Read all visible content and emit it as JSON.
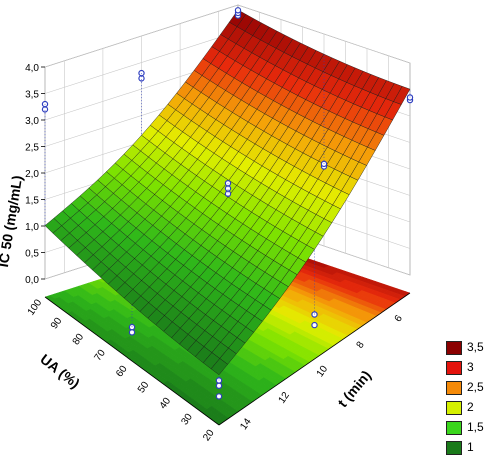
{
  "chart_data": {
    "type": "surface3d",
    "zlabel": "IC 50 (mg/mL)",
    "xlabel": "t (min)",
    "ylabel": "UA (%)",
    "z_ticks": [
      "0,0",
      "0,5",
      "1,0",
      "1,5",
      "2,0",
      "2,5",
      "3,0",
      "3,5",
      "4,0"
    ],
    "x_ticks": [
      "6",
      "8",
      "10",
      "12",
      "14"
    ],
    "y_ticks": [
      "100",
      "90",
      "80",
      "70",
      "60",
      "50",
      "40",
      "30",
      "20"
    ],
    "zlim": [
      0,
      4
    ],
    "xlim": [
      5,
      15
    ],
    "ylim": [
      20,
      100
    ],
    "grid": true,
    "colormap": [
      {
        "label": "3,5",
        "color": "#8b0000"
      },
      {
        "label": "3",
        "color": "#e4130c"
      },
      {
        "label": "2,5",
        "color": "#f58a08"
      },
      {
        "label": "2",
        "color": "#d5f000"
      },
      {
        "label": "1,5",
        "color": "#3ad61c"
      },
      {
        "label": "1",
        "color": "#1a7a1a"
      }
    ],
    "legend_position": "bottom-right",
    "surface_corners": [
      {
        "t": 5,
        "ua": 20,
        "ic50": 3.5
      },
      {
        "t": 5,
        "ua": 100,
        "ic50": 3.9
      },
      {
        "t": 15,
        "ua": 20,
        "ic50": 0.6
      },
      {
        "t": 15,
        "ua": 100,
        "ic50": 1.0
      }
    ],
    "observed_points": [
      {
        "t": 5,
        "ua": 100,
        "ic50": [
          3.8,
          3.85,
          3.9
        ]
      },
      {
        "t": 5,
        "ua": 20,
        "ic50": [
          3.3,
          3.35
        ]
      },
      {
        "t": 10,
        "ua": 60,
        "ic50": [
          1.9,
          2.0,
          2.1
        ]
      },
      {
        "t": 10,
        "ua": 100,
        "ic50": [
          3.2,
          3.3
        ]
      },
      {
        "t": 15,
        "ua": 100,
        "ic50": [
          3.2,
          3.3
        ]
      },
      {
        "t": 5,
        "ua": 60,
        "ic50": [
          1.5,
          1.55
        ]
      },
      {
        "t": 10,
        "ua": 20,
        "ic50": [
          0.3,
          0.5
        ]
      },
      {
        "t": 15,
        "ua": 60,
        "ic50": [
          0.2,
          0.3
        ]
      },
      {
        "t": 15,
        "ua": 20,
        "ic50": [
          0.2,
          0.4,
          0.5
        ]
      }
    ]
  }
}
